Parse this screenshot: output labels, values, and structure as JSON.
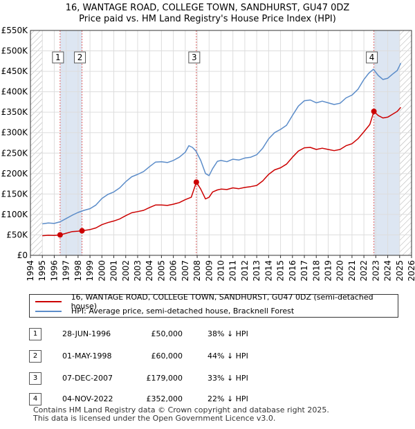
{
  "title": {
    "line1": "16, WANTAGE ROAD, COLLEGE TOWN, SANDHURST, GU47 0DZ",
    "line2": "Price paid vs. HM Land Registry's House Price Index (HPI)"
  },
  "colors": {
    "property": "#cc0000",
    "hpi": "#5b8cc9",
    "band": "#dde6f2",
    "hatch": "#aaaaaa",
    "marker_line": "#e06060"
  },
  "legend": {
    "property_label": "16, WANTAGE ROAD, COLLEGE TOWN, SANDHURST, GU47 0DZ (semi-detached house)",
    "hpi_label": "HPI: Average price, semi-detached house, Bracknell Forest"
  },
  "sales": [
    {
      "num": "1",
      "date": "28-JUN-1996",
      "price": "£50,000",
      "hpi": "38% ↓ HPI"
    },
    {
      "num": "2",
      "date": "01-MAY-1998",
      "price": "£60,000",
      "hpi": "44% ↓ HPI"
    },
    {
      "num": "3",
      "date": "07-DEC-2007",
      "price": "£179,000",
      "hpi": "33% ↓ HPI"
    },
    {
      "num": "4",
      "date": "04-NOV-2022",
      "price": "£352,000",
      "hpi": "22% ↓ HPI"
    }
  ],
  "footer": {
    "line1": "Contains HM Land Registry data © Crown copyright and database right 2025.",
    "line2": "This data is licensed under the Open Government Licence v3.0."
  },
  "chart_data": {
    "type": "line",
    "title": "Price paid vs. HM Land Registry's House Price Index (HPI)",
    "xlim": [
      1994,
      2026
    ],
    "ylim": [
      0,
      550000
    ],
    "x_ticks": [
      "1994",
      "1995",
      "1996",
      "1997",
      "1998",
      "1999",
      "2000",
      "2001",
      "2002",
      "2003",
      "2004",
      "2005",
      "2006",
      "2007",
      "2008",
      "2009",
      "2010",
      "2011",
      "2012",
      "2013",
      "2014",
      "2015",
      "2016",
      "2017",
      "2018",
      "2019",
      "2020",
      "2021",
      "2022",
      "2023",
      "2024",
      "2025",
      "2026"
    ],
    "y_ticks": [
      {
        "value": 0,
        "label": "£0"
      },
      {
        "value": 50000,
        "label": "£50K"
      },
      {
        "value": 100000,
        "label": "£100K"
      },
      {
        "value": 150000,
        "label": "£150K"
      },
      {
        "value": 200000,
        "label": "£200K"
      },
      {
        "value": 250000,
        "label": "£250K"
      },
      {
        "value": 300000,
        "label": "£300K"
      },
      {
        "value": 350000,
        "label": "£350K"
      },
      {
        "value": 400000,
        "label": "£400K"
      },
      {
        "value": 450000,
        "label": "£450K"
      },
      {
        "value": 500000,
        "label": "£500K"
      },
      {
        "value": 550000,
        "label": "£550K"
      }
    ],
    "hatched_ranges": [
      [
        1994,
        1995
      ],
      [
        2025,
        2026
      ]
    ],
    "shaded_ranges": [
      [
        1996.49,
        1998.33
      ],
      [
        2022.84,
        2025
      ]
    ],
    "series": [
      {
        "name": "HPI: Average price, semi-detached house, Bracknell Forest",
        "x": [
          1995,
          1995.5,
          1996,
          1996.5,
          1997,
          1997.5,
          1998,
          1998.5,
          1999,
          1999.5,
          2000,
          2000.5,
          2001,
          2001.5,
          2002,
          2002.5,
          2003,
          2003.5,
          2004,
          2004.5,
          2005,
          2005.5,
          2006,
          2006.5,
          2007,
          2007.3,
          2007.6,
          2007.9,
          2008.3,
          2008.7,
          2009,
          2009.3,
          2009.7,
          2010,
          2010.5,
          2011,
          2011.5,
          2012,
          2012.5,
          2013,
          2013.5,
          2014,
          2014.5,
          2015,
          2015.5,
          2016,
          2016.5,
          2017,
          2017.5,
          2018,
          2018.5,
          2019,
          2019.5,
          2020,
          2020.5,
          2021,
          2021.5,
          2022,
          2022.4,
          2022.8,
          2023.2,
          2023.6,
          2024,
          2024.4,
          2024.8,
          2025.1
        ],
        "values": [
          77000,
          79000,
          78000,
          82000,
          90000,
          98000,
          105000,
          110000,
          114000,
          123000,
          139000,
          149000,
          155000,
          165000,
          180000,
          192000,
          198000,
          205000,
          217000,
          228000,
          229000,
          227000,
          232000,
          240000,
          252000,
          268000,
          264000,
          255000,
          232000,
          200000,
          195000,
          212000,
          230000,
          232000,
          229000,
          235000,
          233000,
          238000,
          240000,
          246000,
          262000,
          285000,
          300000,
          308000,
          318000,
          342000,
          365000,
          378000,
          380000,
          373000,
          377000,
          373000,
          369000,
          372000,
          385000,
          392000,
          406000,
          430000,
          445000,
          455000,
          440000,
          430000,
          433000,
          443000,
          452000,
          470000
        ]
      },
      {
        "name": "16, WANTAGE ROAD, COLLEGE TOWN, SANDHURST, GU47 0DZ (semi-detached house)",
        "x": [
          1995,
          1995.5,
          1996,
          1996.49,
          1997,
          1997.5,
          1998,
          1998.33,
          1999,
          1999.5,
          2000,
          2000.5,
          2001,
          2001.5,
          2002,
          2002.5,
          2003,
          2003.5,
          2004,
          2004.5,
          2005,
          2005.5,
          2006,
          2006.5,
          2007,
          2007.5,
          2007.93,
          2008.3,
          2008.7,
          2009,
          2009.3,
          2009.7,
          2010,
          2010.5,
          2011,
          2011.5,
          2012,
          2012.5,
          2013,
          2013.5,
          2014,
          2014.5,
          2015,
          2015.5,
          2016,
          2016.5,
          2017,
          2017.5,
          2018,
          2018.5,
          2019,
          2019.5,
          2020,
          2020.5,
          2021,
          2021.5,
          2022,
          2022.5,
          2022.84,
          2023.2,
          2023.6,
          2024,
          2024.4,
          2024.8,
          2025.1
        ],
        "values": [
          48000,
          49000,
          48500,
          50000,
          54000,
          58000,
          59000,
          60000,
          63000,
          67000,
          75000,
          80000,
          84000,
          89000,
          97000,
          104000,
          107000,
          110000,
          117000,
          123000,
          123000,
          122000,
          125000,
          129000,
          136000,
          142000,
          179000,
          162000,
          138000,
          142000,
          155000,
          160000,
          162000,
          161000,
          165000,
          163000,
          166000,
          168000,
          171000,
          182000,
          198000,
          209000,
          214000,
          223000,
          240000,
          255000,
          263000,
          264000,
          259000,
          262000,
          259000,
          256000,
          259000,
          268000,
          273000,
          285000,
          302000,
          320000,
          352000,
          342000,
          336000,
          338000,
          345000,
          352000,
          362000
        ]
      }
    ],
    "sales_points": [
      {
        "label": "1",
        "x": 1996.49,
        "value": 50000
      },
      {
        "label": "2",
        "x": 1998.33,
        "value": 60000
      },
      {
        "label": "3",
        "x": 2007.93,
        "value": 179000
      },
      {
        "label": "4",
        "x": 2022.84,
        "value": 352000
      }
    ]
  }
}
